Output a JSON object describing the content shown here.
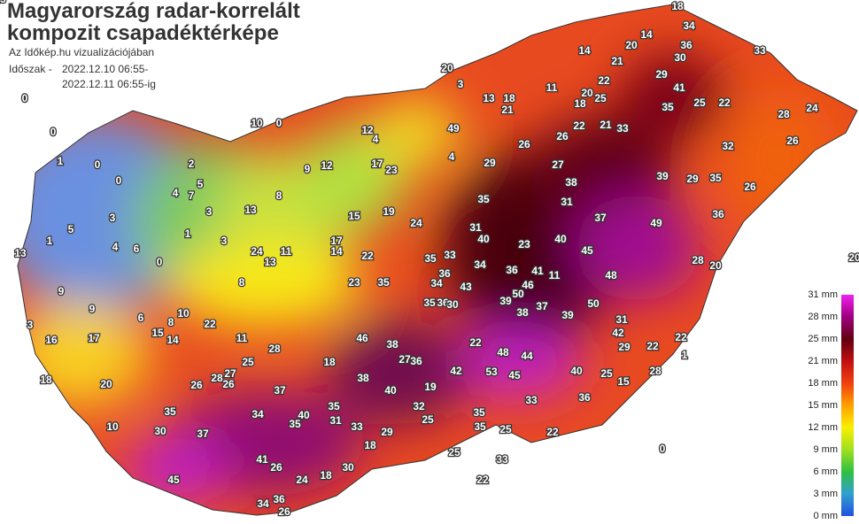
{
  "header": {
    "title_line1": "Magyarország radar-korrelált",
    "title_line2": "kompozit csapadéktérképe",
    "subtitle": "Az Időkép.hu vizualizációjában",
    "period_label": "Időszak -",
    "period_from": "2022.12.10 06:55-",
    "period_to": "2022.12.11 06:55-ig"
  },
  "legend": {
    "labels": [
      "31 mm",
      "28 mm",
      "25 mm",
      "21 mm",
      "18 mm",
      "15 mm",
      "12 mm",
      "9 mm",
      "6 mm",
      "3 mm",
      "0 mm"
    ]
  },
  "stations": [
    18,
    34,
    14,
    20,
    36,
    33,
    14,
    21,
    30,
    29,
    41,
    22,
    20,
    11,
    20,
    25,
    3,
    18,
    13,
    21,
    18,
    35,
    25,
    22,
    28,
    24,
    49,
    26,
    26,
    22,
    21,
    33,
    32,
    26,
    4,
    29,
    27,
    39,
    29,
    35,
    38,
    26,
    35,
    31,
    37,
    36,
    49,
    31,
    24,
    40,
    23,
    40,
    45,
    28,
    20,
    36,
    41,
    11,
    48,
    35,
    33,
    34,
    36,
    34,
    43,
    46,
    23,
    35,
    50,
    39,
    38,
    37,
    35,
    36,
    30,
    39,
    50,
    31,
    42,
    46,
    22,
    38,
    29,
    22,
    22,
    48,
    44,
    27,
    36,
    42,
    53,
    45,
    40,
    25,
    28,
    15,
    18,
    38,
    40,
    19,
    25,
    28,
    27,
    26,
    28,
    26,
    37,
    36,
    32,
    35,
    33,
    35,
    35,
    40,
    34,
    31,
    25,
    33,
    35,
    30,
    37,
    29,
    35,
    25,
    22,
    18,
    41,
    26,
    30,
    24,
    18,
    45,
    36,
    34,
    26,
    0,
    0,
    0,
    1,
    2,
    4,
    7,
    3,
    3,
    4,
    0,
    6,
    13,
    0,
    1,
    3,
    5,
    8,
    13,
    9,
    12,
    17,
    19,
    15,
    24,
    13,
    11,
    14,
    22,
    17,
    23,
    8,
    9,
    6,
    15,
    10,
    14,
    22,
    11,
    17,
    16,
    9,
    3,
    5,
    1,
    0,
    10,
    4,
    12,
    8,
    10,
    20,
    18,
    25,
    33,
    22,
    0,
    1,
    20,
    13
  ]
}
